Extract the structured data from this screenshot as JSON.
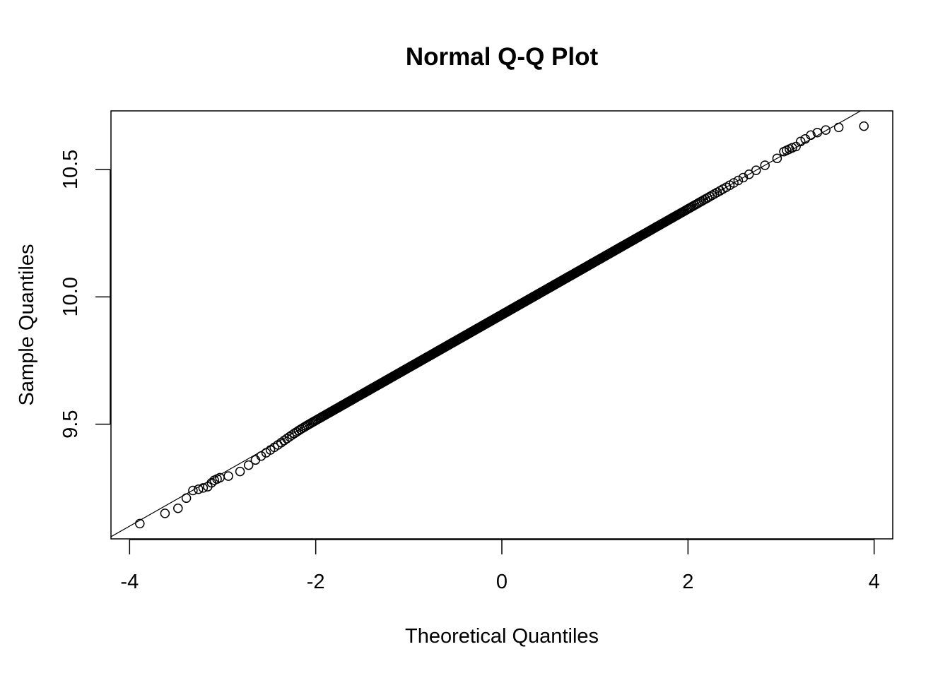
{
  "chart_data": {
    "type": "scatter",
    "title": "Normal Q-Q Plot",
    "xlabel": "Theoretical Quantiles",
    "ylabel": "Sample Quantiles",
    "xlim": [
      -4.2,
      4.2
    ],
    "ylim": [
      9.05,
      10.73
    ],
    "x_ticks": [
      -4,
      -2,
      0,
      2,
      4
    ],
    "x_tick_labels": [
      "-4",
      "-2",
      "0",
      "2",
      "4"
    ],
    "y_ticks": [
      9.5,
      10.0,
      10.5
    ],
    "y_tick_labels": [
      "9.5",
      "10.0",
      "10.5"
    ],
    "grid": false,
    "marker": "open-circle",
    "reference_line": {
      "intercept": 9.93,
      "slope": 0.2075
    },
    "n_points": 10000,
    "distribution": {
      "mean": 9.93,
      "sd": 0.2075
    },
    "tail_points": [
      {
        "x": -3.89,
        "y": 9.11
      },
      {
        "x": -3.62,
        "y": 9.15
      },
      {
        "x": -3.48,
        "y": 9.17
      },
      {
        "x": -3.39,
        "y": 9.21
      },
      {
        "x": -3.32,
        "y": 9.24
      },
      {
        "x": -3.26,
        "y": 9.245
      },
      {
        "x": -3.21,
        "y": 9.25
      },
      {
        "x": -3.16,
        "y": 9.255
      },
      {
        "x": -3.12,
        "y": 9.27
      },
      {
        "x": -3.09,
        "y": 9.28
      },
      {
        "x": -3.06,
        "y": 9.285
      },
      {
        "x": -3.03,
        "y": 9.29
      },
      {
        "x": 3.03,
        "y": 10.57
      },
      {
        "x": 3.06,
        "y": 10.575
      },
      {
        "x": 3.09,
        "y": 10.58
      },
      {
        "x": 3.12,
        "y": 10.585
      },
      {
        "x": 3.16,
        "y": 10.59
      },
      {
        "x": 3.21,
        "y": 10.61
      },
      {
        "x": 3.26,
        "y": 10.62
      },
      {
        "x": 3.32,
        "y": 10.635
      },
      {
        "x": 3.39,
        "y": 10.645
      },
      {
        "x": 3.48,
        "y": 10.655
      },
      {
        "x": 3.62,
        "y": 10.665
      },
      {
        "x": 3.89,
        "y": 10.67
      }
    ],
    "local_deviations": [
      {
        "x": -2.85,
        "dy": -0.03
      },
      {
        "x": -2.6,
        "dy": -0.012
      },
      {
        "x": -2.4,
        "dy": -0.008
      }
    ]
  }
}
